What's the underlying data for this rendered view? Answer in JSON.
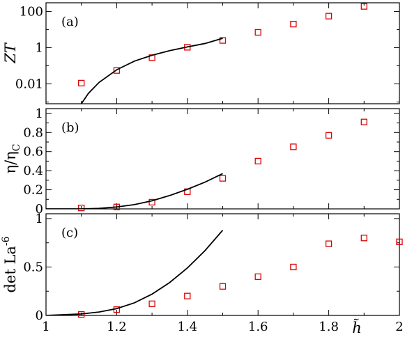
{
  "chart_data": [
    {
      "type": "scatter",
      "panel_label": "(a)",
      "ylabel": "ZT",
      "yscale": "log",
      "ylim": [
        0.0008,
        300
      ],
      "xlim": [
        1.0,
        2.0
      ],
      "y_ticks": [
        0.01,
        1,
        100
      ],
      "y_tick_labels": [
        "0.01",
        "1",
        "100"
      ],
      "x_ticks": [
        1.0,
        1.2,
        1.4,
        1.6,
        1.8,
        2.0
      ],
      "x_tick_labels": [],
      "series": [
        {
          "kind": "markers",
          "marker": "square",
          "color": "#dd0000",
          "x": [
            1.1,
            1.2,
            1.3,
            1.4,
            1.5,
            1.6,
            1.7,
            1.8,
            1.9
          ],
          "y": [
            0.011,
            0.055,
            0.28,
            1.05,
            2.5,
            7.0,
            20.0,
            55.0,
            190.0
          ]
        },
        {
          "kind": "line",
          "color": "#000000",
          "x": [
            1.1,
            1.12,
            1.15,
            1.2,
            1.25,
            1.3,
            1.35,
            1.4,
            1.45,
            1.5
          ],
          "y": [
            0.0008,
            0.003,
            0.012,
            0.06,
            0.18,
            0.38,
            0.68,
            1.1,
            1.7,
            3.3
          ]
        }
      ]
    },
    {
      "type": "scatter",
      "panel_label": "(b)",
      "ylabel": "η/η",
      "ylabel_sub": "C",
      "ylim": [
        0,
        1.05
      ],
      "xlim": [
        1.0,
        2.0
      ],
      "y_ticks": [
        0,
        0.2,
        0.4,
        0.6,
        0.8,
        1
      ],
      "y_tick_labels": [
        "0",
        "0.2",
        "0.4",
        "0.6",
        "0.8",
        "1"
      ],
      "x_ticks": [
        1.0,
        1.2,
        1.4,
        1.6,
        1.8,
        2.0
      ],
      "x_tick_labels": [],
      "series": [
        {
          "kind": "markers",
          "marker": "square",
          "color": "#dd0000",
          "x": [
            1.1,
            1.2,
            1.3,
            1.4,
            1.5,
            1.6,
            1.7,
            1.8,
            1.9
          ],
          "y": [
            0.01,
            0.02,
            0.07,
            0.18,
            0.32,
            0.5,
            0.65,
            0.77,
            0.91
          ]
        },
        {
          "kind": "line",
          "color": "#000000",
          "x": [
            1.0,
            1.1,
            1.15,
            1.2,
            1.25,
            1.3,
            1.35,
            1.4,
            1.45,
            1.5
          ],
          "y": [
            0.0,
            0.0,
            0.005,
            0.02,
            0.045,
            0.085,
            0.14,
            0.205,
            0.28,
            0.37
          ]
        }
      ]
    },
    {
      "type": "scatter",
      "panel_label": "(c)",
      "ylabel": "det La",
      "ylabel_sup": "-6",
      "ylim": [
        0,
        1.05
      ],
      "xlim": [
        1.0,
        2.0
      ],
      "y_ticks": [
        0,
        0.5,
        1
      ],
      "y_tick_labels": [
        "0",
        "0.5",
        "1"
      ],
      "x_ticks": [
        1.0,
        1.2,
        1.4,
        1.6,
        1.8,
        2.0
      ],
      "x_tick_labels": [
        "1",
        "1.2",
        "1.4",
        "1.6",
        "1.8",
        "2"
      ],
      "xlabel": "h̃",
      "series": [
        {
          "kind": "markers",
          "marker": "square",
          "color": "#dd0000",
          "x": [
            1.1,
            1.2,
            1.3,
            1.4,
            1.5,
            1.6,
            1.7,
            1.8,
            1.9,
            2.0
          ],
          "y": [
            0.01,
            0.06,
            0.12,
            0.2,
            0.3,
            0.4,
            0.5,
            0.74,
            0.8,
            0.76
          ]
        },
        {
          "kind": "line",
          "color": "#000000",
          "x": [
            1.0,
            1.1,
            1.15,
            1.2,
            1.25,
            1.3,
            1.35,
            1.4,
            1.45,
            1.5
          ],
          "y": [
            0.0,
            0.015,
            0.035,
            0.07,
            0.13,
            0.22,
            0.34,
            0.49,
            0.67,
            0.88
          ]
        }
      ]
    }
  ]
}
